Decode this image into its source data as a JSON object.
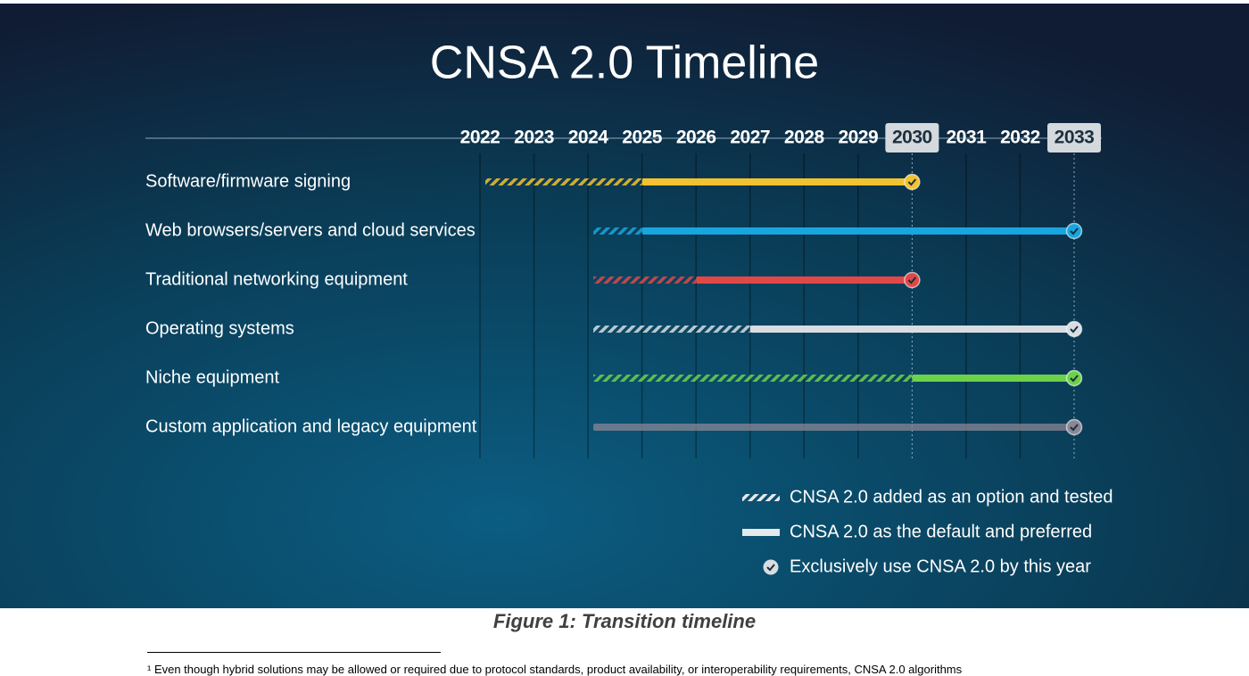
{
  "chart_data": {
    "type": "timeline",
    "title": "CNSA 2.0 Timeline",
    "xlim": [
      2022,
      2033
    ],
    "xticks": [
      2022,
      2023,
      2024,
      2025,
      2026,
      2027,
      2028,
      2029,
      2030,
      2031,
      2032,
      2033
    ],
    "highlighted_ticks": [
      2030,
      2033
    ],
    "series": [
      {
        "name": "Software/firmware signing",
        "color": "#f2c230",
        "option_start": 2022,
        "default_start": 2025,
        "end": 2030
      },
      {
        "name": "Web browsers/servers and cloud services",
        "color": "#18a6e0",
        "option_start": 2024,
        "default_start": 2025,
        "end": 2033
      },
      {
        "name": "Traditional networking equipment",
        "color": "#e04848",
        "option_start": 2024,
        "default_start": 2026,
        "end": 2030
      },
      {
        "name": "Operating systems",
        "color": "#d8dde2",
        "option_start": 2024,
        "default_start": 2027,
        "end": 2033
      },
      {
        "name": "Niche equipment",
        "color": "#6cd24a",
        "option_start": 2024,
        "default_start": 2030,
        "end": 2033
      },
      {
        "name": "Custom application and legacy equipment",
        "color": "#8a8796",
        "option_start": 2024,
        "default_start": null,
        "end": 2033
      }
    ],
    "legend": {
      "option": "CNSA 2.0 added as an option and tested",
      "default": "CNSA 2.0 as the default and preferred",
      "exclusive": "Exclusively use CNSA 2.0 by this year"
    }
  },
  "caption": "Figure 1: Transition timeline",
  "footnote": "¹ Even though hybrid solutions may be allowed or required due to protocol standards, product availability, or interoperability requirements, CNSA 2.0 algorithms"
}
